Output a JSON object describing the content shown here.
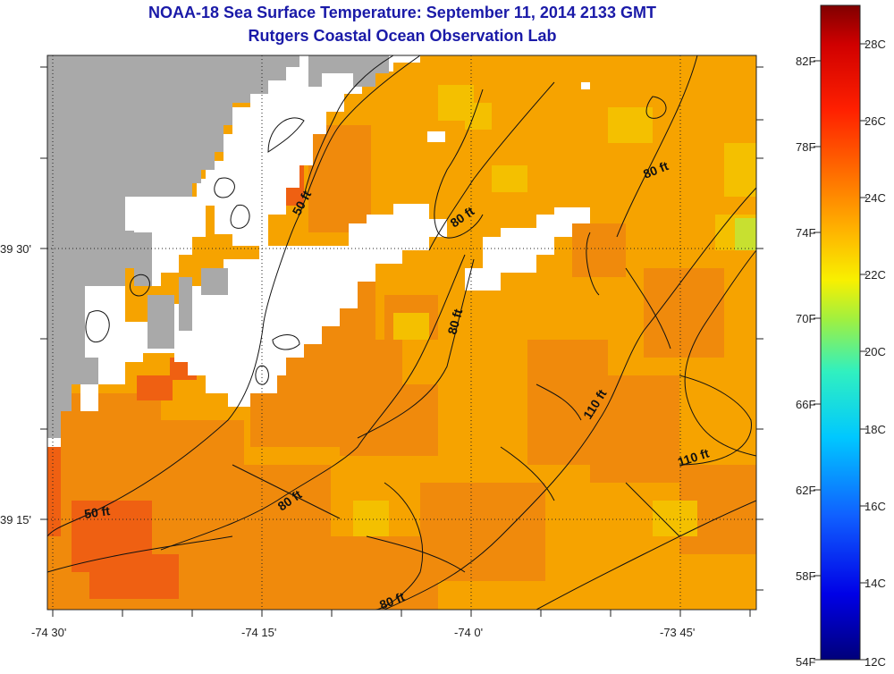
{
  "title": "NOAA-18 Sea Surface Temperature:  September 11, 2014 2133 GMT",
  "subtitle": "Rutgers Coastal Ocean Observation Lab",
  "x_ticks": [
    "-74 30'",
    "-74 15'",
    "-74 0'",
    "-73 45'"
  ],
  "y_ticks": [
    "39 30'",
    "39 15'"
  ],
  "contour_labels": [
    "50 ft",
    "80 ft",
    "80 ft",
    "80 ft",
    "110 ft",
    "110 ft",
    "50 ft",
    "80 ft",
    "80 ft"
  ],
  "colorbar": {
    "fahrenheit": [
      "82F",
      "78F",
      "74F",
      "70F",
      "66F",
      "62F",
      "58F",
      "54F"
    ],
    "celsius": [
      "28C",
      "26C",
      "24C",
      "22C",
      "20C",
      "18C",
      "16C",
      "14C",
      "12C"
    ]
  },
  "colors": {
    "land": "#a9a9a9",
    "cloud": "#ffffff",
    "title": "#1a1aa8",
    "sst_main": "#f6a300",
    "sst_warm": "#f07a10",
    "sst_hot": "#ef4a10",
    "sst_cool": "#f0c800"
  }
}
